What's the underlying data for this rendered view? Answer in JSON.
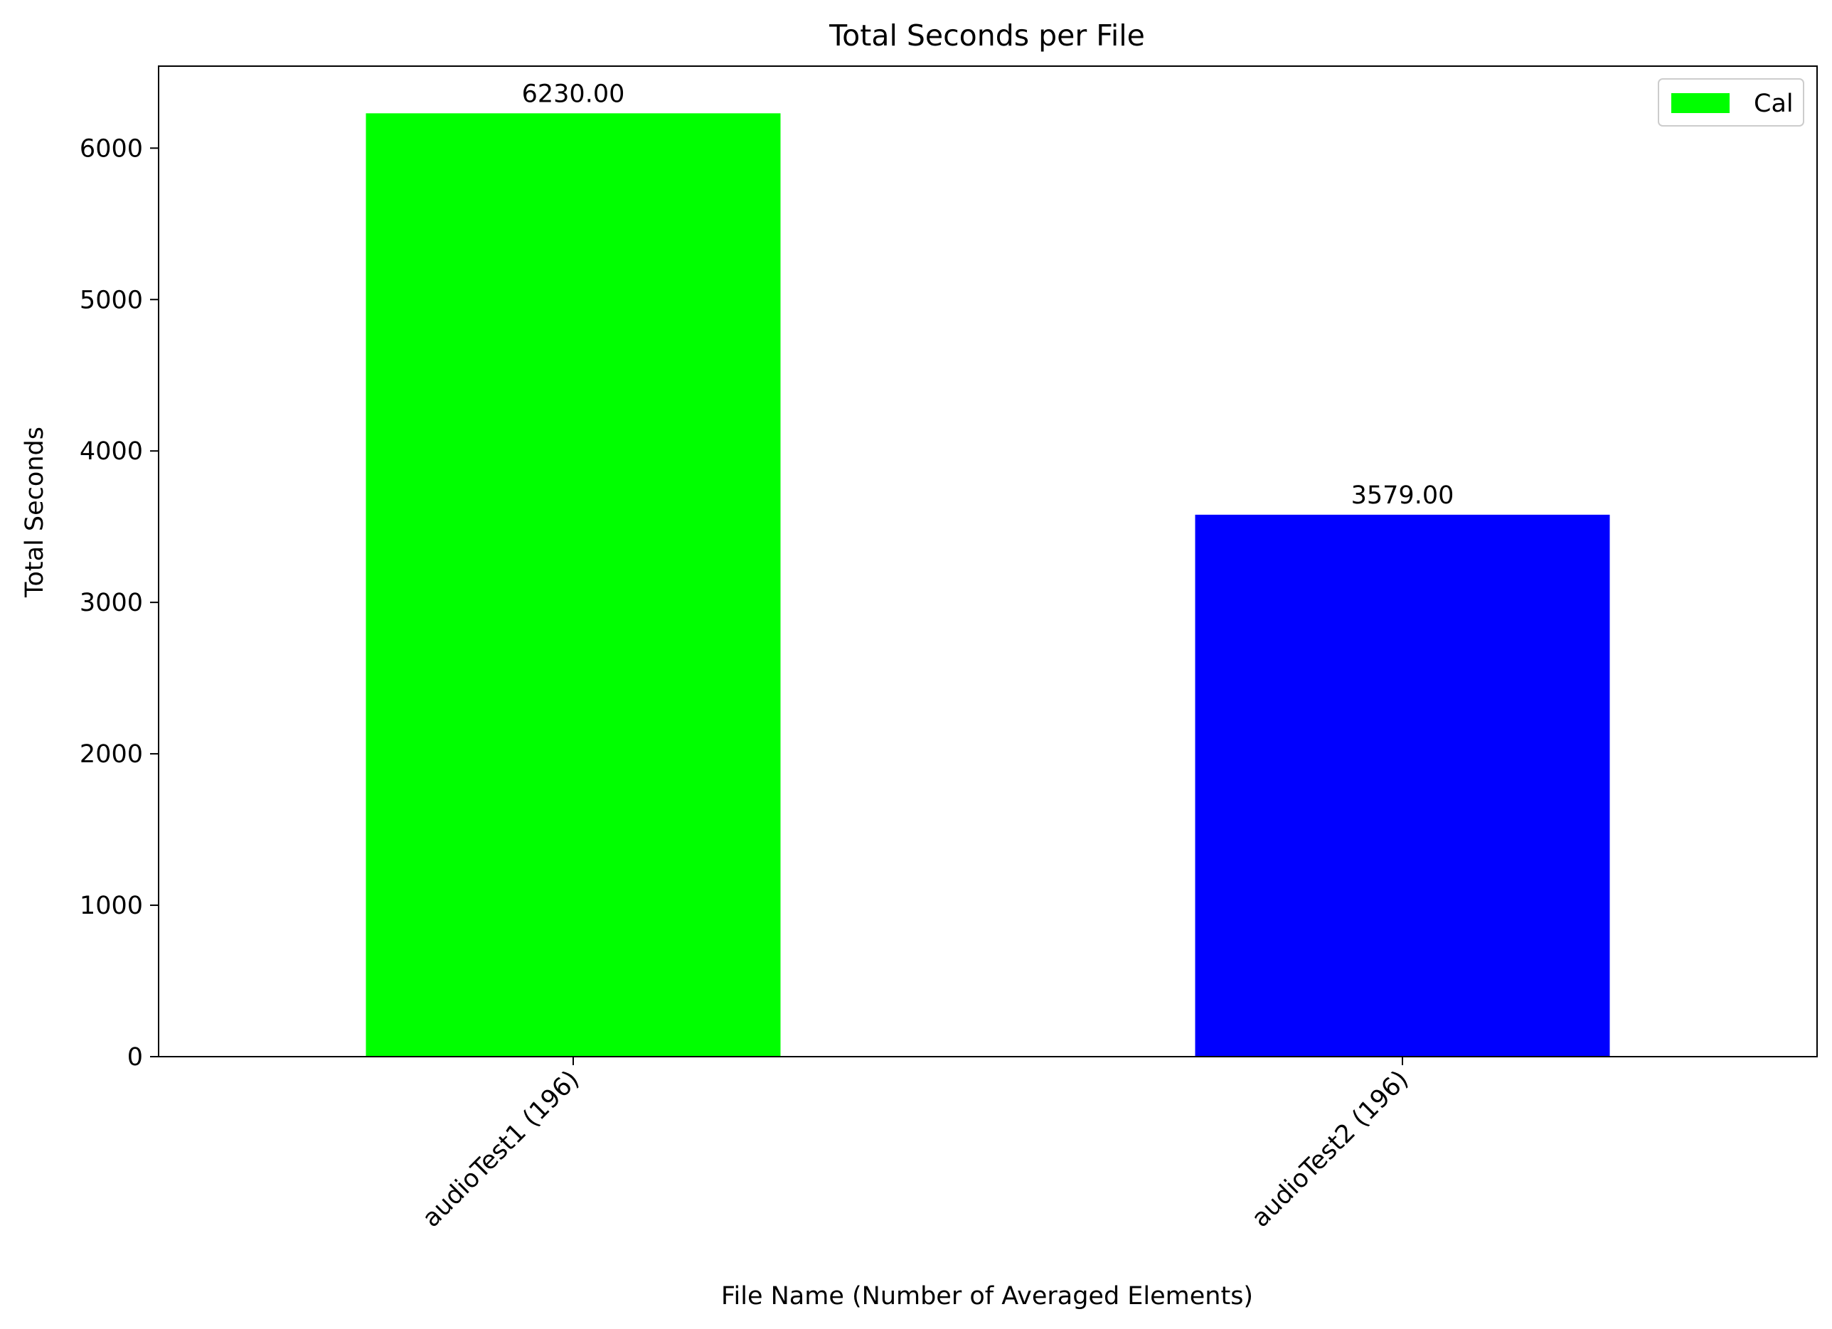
{
  "chart_data": {
    "type": "bar",
    "title": "Total Seconds per File",
    "xlabel": "File Name (Number of Averaged Elements)",
    "ylabel": "Total Seconds",
    "categories": [
      "audioTest1 (196)",
      "audioTest2 (196)"
    ],
    "values": [
      6230.0,
      3579.0
    ],
    "data_labels": [
      "6230.00",
      "3579.00"
    ],
    "bar_colors": [
      "#00ff00",
      "#0000ff"
    ],
    "ylim": [
      0,
      6541.5
    ],
    "yticks": [
      0,
      1000,
      2000,
      3000,
      4000,
      5000,
      6000
    ],
    "ytick_labels": [
      "0",
      "1000",
      "2000",
      "3000",
      "4000",
      "5000",
      "6000"
    ],
    "grid": false,
    "legend": {
      "entries": [
        {
          "label": "Cal",
          "color": "#00ff00"
        }
      ],
      "placement": "top-right"
    }
  }
}
